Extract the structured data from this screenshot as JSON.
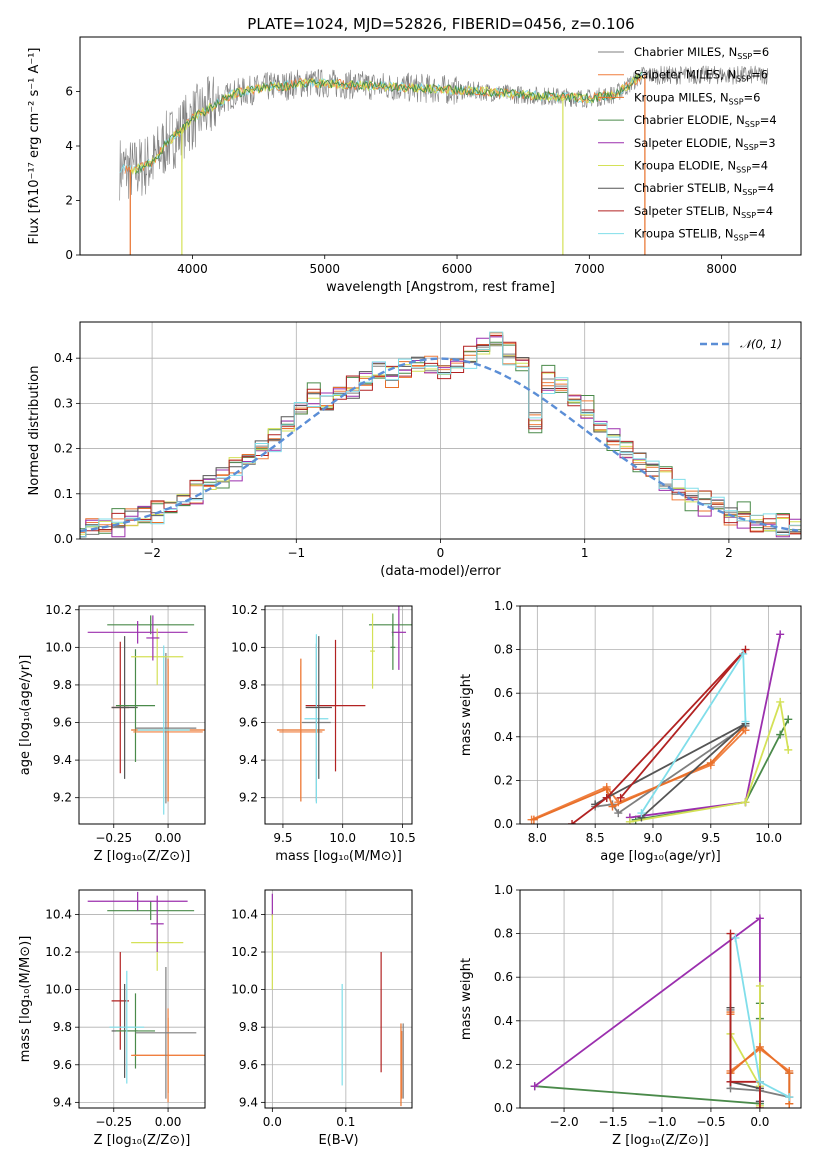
{
  "title": "PLATE=1024, MJD=52826, FIBERID=0456, z=0.106",
  "colors": {
    "series": [
      "#7f7f7f",
      "#f07f3f",
      "#e8702a",
      "#4a8a4a",
      "#9b2fae",
      "#d4e157",
      "#555555",
      "#b22222",
      "#80deea"
    ],
    "gaussian": "#5b8ed6",
    "grid": "#b0b0b0"
  },
  "chart_data": [
    {
      "id": "spectrum",
      "type": "line",
      "xlabel": "wavelength [Angstrom, rest frame]",
      "ylabel": "Flux [fλ10⁻¹⁷ erg cm⁻² s⁻¹ A⁻¹]",
      "xlim": [
        3150,
        8600
      ],
      "ylim": [
        0,
        8
      ],
      "xticks": [
        4000,
        5000,
        6000,
        7000,
        8000
      ],
      "yticks": [
        0,
        2,
        4,
        6
      ],
      "grid": false,
      "legend_position": "right",
      "continuum": {
        "x": [
          3450,
          3550,
          3700,
          3800,
          3900,
          4000,
          4100,
          4200,
          4300,
          4400,
          4500,
          4600,
          4700,
          4800,
          4900,
          5000,
          5200,
          5400,
          5600,
          5800,
          6000,
          6200,
          6400,
          6600,
          6800,
          7000,
          7200,
          7400
        ],
        "y": [
          3.2,
          3.1,
          3.4,
          4.1,
          4.5,
          5.0,
          5.3,
          5.6,
          5.9,
          6.0,
          6.1,
          6.2,
          6.2,
          6.3,
          6.3,
          6.3,
          6.25,
          6.2,
          6.15,
          6.1,
          6.05,
          6.0,
          5.9,
          5.85,
          5.8,
          5.75,
          5.9,
          6.6
        ]
      },
      "series": [
        {
          "name": "Chabrier MILES, N$_{SSP}$=6",
          "label_main": "Chabrier MILES, N",
          "label_sub": "SSP",
          "label_tail": "=6"
        },
        {
          "name": "Salpeter MILES, N$_{SSP}$=6",
          "label_main": "Salpeter MILES, N",
          "label_sub": "SSP",
          "label_tail": "=6"
        },
        {
          "name": "Kroupa MILES, N$_{SSP}$=6",
          "label_main": "Kroupa MILES, N",
          "label_sub": "SSP",
          "label_tail": "=6"
        },
        {
          "name": "Chabrier ELODIE, N$_{SSP}$=4",
          "label_main": "Chabrier ELODIE, N",
          "label_sub": "SSP",
          "label_tail": "=4"
        },
        {
          "name": "Salpeter ELODIE, N$_{SSP}$=3",
          "label_main": "Salpeter ELODIE, N",
          "label_sub": "SSP",
          "label_tail": "=3"
        },
        {
          "name": "Kroupa ELODIE, N$_{SSP}$=4",
          "label_main": "Kroupa ELODIE, N",
          "label_sub": "SSP",
          "label_tail": "=4"
        },
        {
          "name": "Chabrier STELIB, N$_{SSP}$=4",
          "label_main": "Chabrier STELIB, N",
          "label_sub": "SSP",
          "label_tail": "=4"
        },
        {
          "name": "Salpeter STELIB, N$_{SSP}$=4",
          "label_main": "Salpeter STELIB, N",
          "label_sub": "SSP",
          "label_tail": "=4"
        },
        {
          "name": "Kroupa STELIB, N$_{SSP}$=4",
          "label_main": "Kroupa STELIB, N",
          "label_sub": "SSP",
          "label_tail": "=4"
        }
      ]
    },
    {
      "id": "residuals",
      "type": "line",
      "xlabel": "(data-model)/error",
      "ylabel": "Normed distribution",
      "xlim": [
        -2.5,
        2.5
      ],
      "ylim": [
        0,
        0.48
      ],
      "xticks": [
        -2,
        -1,
        0,
        1,
        2
      ],
      "xticklabels": [
        "−2",
        "−1",
        "0",
        "1",
        "2"
      ],
      "yticks": [
        0.0,
        0.1,
        0.2,
        0.3,
        0.4
      ],
      "yticklabels": [
        "0.0",
        "0.1",
        "0.2",
        "0.3",
        "0.4"
      ],
      "grid": true,
      "legend_position": "top-right",
      "legend": "𝒩(0, 1)",
      "hist_base": [
        0.02,
        0.025,
        0.03,
        0.035,
        0.045,
        0.05,
        0.06,
        0.075,
        0.09,
        0.105,
        0.12,
        0.14,
        0.16,
        0.18,
        0.2,
        0.22,
        0.25,
        0.29,
        0.31,
        0.3,
        0.32,
        0.33,
        0.35,
        0.37,
        0.36,
        0.38,
        0.39,
        0.38,
        0.37,
        0.39,
        0.4,
        0.42,
        0.44,
        0.41,
        0.39,
        0.26,
        0.35,
        0.34,
        0.31,
        0.28,
        0.25,
        0.22,
        0.19,
        0.17,
        0.16,
        0.13,
        0.11,
        0.09,
        0.08,
        0.07,
        0.05,
        0.05,
        0.04,
        0.035,
        0.03,
        0.025,
        0.02
      ],
      "hist_offsets": [
        0.0,
        0.012,
        -0.01,
        0.02,
        -0.015,
        0.008,
        -0.006,
        0.015,
        -0.012
      ]
    },
    {
      "id": "age_vs_Z",
      "type": "scatter",
      "xlabel": "Z [log₁₀(Z/Z⊙)]",
      "ylabel": "age  [log₁₀(age/yr)]",
      "xlim": [
        -0.41,
        0.17
      ],
      "ylim": [
        9.06,
        10.22
      ],
      "xticks": [
        -0.25,
        0.0
      ],
      "xticklabels": [
        "−0.25",
        "0.00"
      ],
      "yticks": [
        9.2,
        9.4,
        9.6,
        9.8,
        10.0,
        10.2
      ],
      "yticklabels": [
        "9.2",
        "9.4",
        "9.6",
        "9.8",
        "10.0",
        "10.2"
      ],
      "grid": true,
      "errorbars": [
        {
          "x": -0.22,
          "xerr": 0.04,
          "y": 9.68,
          "yerr": 0.35,
          "c": 7
        },
        {
          "x": -0.2,
          "xerr": 0.06,
          "y": 9.68,
          "yerr": 0.38,
          "c": 6
        },
        {
          "x": -0.15,
          "xerr": 0.09,
          "y": 9.69,
          "yerr": 0.3,
          "c": 3
        },
        {
          "x": 0.0,
          "xerr": 0.17,
          "y": 9.56,
          "yerr": 0.38,
          "c": 2
        },
        {
          "x": 0.0,
          "xerr": 0.16,
          "y": 9.55,
          "yerr": 0.35,
          "c": 1
        },
        {
          "x": -0.01,
          "xerr": 0.14,
          "y": 9.57,
          "yerr": 0.4,
          "c": 0
        },
        {
          "x": -0.02,
          "xerr": 0.12,
          "y": 9.56,
          "yerr": 0.45,
          "c": 8
        },
        {
          "x": -0.08,
          "xerr": 0.2,
          "y": 10.12,
          "yerr": 0.05,
          "c": 3
        },
        {
          "x": -0.14,
          "xerr": 0.23,
          "y": 10.08,
          "yerr": 0.06,
          "c": 4
        },
        {
          "x": -0.05,
          "xerr": 0.12,
          "y": 9.95,
          "yerr": 0.15,
          "c": 5
        },
        {
          "x": -0.07,
          "xerr": 0.03,
          "y": 10.05,
          "yerr": 0.12,
          "c": 4
        }
      ]
    },
    {
      "id": "age_vs_mass",
      "type": "scatter",
      "xlabel": "mass [log₁₀(M/M⊙)]",
      "ylabel": "",
      "xlim": [
        9.35,
        10.58
      ],
      "ylim": [
        9.06,
        10.22
      ],
      "xticks": [
        9.5,
        10.0,
        10.5
      ],
      "xticklabels": [
        "9.5",
        "10.0",
        "10.5"
      ],
      "yticks": [
        9.2,
        9.4,
        9.6,
        9.8,
        10.0,
        10.2
      ],
      "yticklabels": [
        "9.2",
        "9.4",
        "9.6",
        "9.8",
        "10.0",
        "10.2"
      ],
      "grid": true,
      "errorbars": [
        {
          "x": 9.94,
          "xerr": 0.25,
          "y": 9.69,
          "yerr": 0.35,
          "c": 7
        },
        {
          "x": 9.65,
          "xerr": 0.2,
          "y": 9.56,
          "yerr": 0.38,
          "c": 2
        },
        {
          "x": 9.65,
          "xerr": 0.18,
          "y": 9.55,
          "yerr": 0.35,
          "c": 1
        },
        {
          "x": 9.78,
          "xerr": 0.12,
          "y": 9.6,
          "yerr": 0.42,
          "c": 0
        },
        {
          "x": 9.78,
          "xerr": 0.1,
          "y": 9.62,
          "yerr": 0.45,
          "c": 8
        },
        {
          "x": 9.8,
          "xerr": 0.11,
          "y": 9.68,
          "yerr": 0.38,
          "c": 6
        },
        {
          "x": 10.42,
          "xerr": 0.2,
          "y": 10.12,
          "yerr": 0.06,
          "c": 3
        },
        {
          "x": 10.47,
          "xerr": 0.06,
          "y": 10.08,
          "yerr": 0.2,
          "c": 4
        },
        {
          "x": 10.25,
          "xerr": 0.02,
          "y": 9.98,
          "yerr": 0.2,
          "c": 5
        },
        {
          "x": 10.42,
          "xerr": 0.02,
          "y": 10.0,
          "yerr": 0.12,
          "c": 3
        }
      ]
    },
    {
      "id": "massweight_vs_age",
      "type": "line",
      "xlabel": "age  [log₁₀(age/yr)]",
      "ylabel": "mass weight",
      "xlim": [
        7.85,
        10.28
      ],
      "ylim": [
        0,
        1.0
      ],
      "xticks": [
        8.0,
        8.5,
        9.0,
        9.5,
        10.0
      ],
      "xticklabels": [
        "8.0",
        "8.5",
        "9.0",
        "9.5",
        "10.0"
      ],
      "yticks": [
        0.0,
        0.2,
        0.4,
        0.6,
        0.8,
        1.0
      ],
      "yticklabels": [
        "0.0",
        "0.2",
        "0.4",
        "0.6",
        "0.8",
        "1.0"
      ],
      "grid": true,
      "series": [
        {
          "c": 0,
          "x": [
            8.5,
            8.65,
            8.7,
            9.8
          ],
          "y": [
            0.08,
            0.09,
            0.05,
            0.45
          ]
        },
        {
          "c": 1,
          "x": [
            7.95,
            8.6,
            8.7,
            9.5,
            9.8
          ],
          "y": [
            0.02,
            0.17,
            0.1,
            0.27,
            0.43
          ]
        },
        {
          "c": 2,
          "x": [
            7.97,
            8.6,
            8.65,
            9.5,
            9.78
          ],
          "y": [
            0.02,
            0.16,
            0.08,
            0.28,
            0.44
          ]
        },
        {
          "c": 3,
          "x": [
            8.85,
            9.8,
            10.1,
            10.17
          ],
          "y": [
            0.02,
            0.1,
            0.41,
            0.48
          ]
        },
        {
          "c": 4,
          "x": [
            8.8,
            9.8,
            10.1
          ],
          "y": [
            0.03,
            0.1,
            0.87
          ]
        },
        {
          "c": 5,
          "x": [
            8.8,
            9.8,
            10.1,
            10.17
          ],
          "y": [
            0.01,
            0.1,
            0.56,
            0.34
          ]
        },
        {
          "c": 6,
          "x": [
            8.9,
            9.8,
            8.6,
            8.5
          ],
          "y": [
            0.03,
            0.46,
            0.12,
            0.09
          ]
        },
        {
          "c": 7,
          "x": [
            8.3,
            8.6,
            9.8,
            8.72
          ],
          "y": [
            0.0,
            0.12,
            0.8,
            0.12
          ]
        },
        {
          "c": 8,
          "x": [
            8.9,
            9.78,
            9.8
          ],
          "y": [
            0.05,
            0.78,
            0.47
          ]
        }
      ]
    },
    {
      "id": "mass_vs_Z",
      "type": "scatter",
      "xlabel": "Z [log₁₀(Z/Z⊙)]",
      "ylabel": "mass [log₁₀(M/M⊙)]",
      "xlim": [
        -0.41,
        0.17
      ],
      "ylim": [
        9.37,
        10.53
      ],
      "xticks": [
        -0.25,
        0.0
      ],
      "xticklabels": [
        "−0.25",
        "0.00"
      ],
      "yticks": [
        9.4,
        9.6,
        9.8,
        10.0,
        10.2,
        10.4
      ],
      "yticklabels": [
        "9.4",
        "9.6",
        "9.8",
        "10.0",
        "10.2",
        "10.4"
      ],
      "grid": true,
      "errorbars": [
        {
          "x": -0.22,
          "xerr": 0.04,
          "y": 9.94,
          "yerr": 0.26,
          "c": 7
        },
        {
          "x": -0.2,
          "xerr": 0.06,
          "y": 9.78,
          "yerr": 0.25,
          "c": 6
        },
        {
          "x": -0.15,
          "xerr": 0.09,
          "y": 9.78,
          "yerr": 0.2,
          "c": 3
        },
        {
          "x": -0.19,
          "xerr": 0.08,
          "y": 9.8,
          "yerr": 0.3,
          "c": 8
        },
        {
          "x": 0.0,
          "xerr": 0.16,
          "y": 9.65,
          "yerr": 0.2,
          "c": 2
        },
        {
          "x": 0.0,
          "xerr": 0.17,
          "y": 9.65,
          "yerr": 0.25,
          "c": 1
        },
        {
          "x": -0.01,
          "xerr": 0.14,
          "y": 9.77,
          "yerr": 0.35,
          "c": 0
        },
        {
          "x": -0.08,
          "xerr": 0.2,
          "y": 10.42,
          "yerr": 0.05,
          "c": 3
        },
        {
          "x": -0.14,
          "xerr": 0.23,
          "y": 10.47,
          "yerr": 0.05,
          "c": 4
        },
        {
          "x": -0.05,
          "xerr": 0.12,
          "y": 10.25,
          "yerr": 0.15,
          "c": 5
        },
        {
          "x": -0.05,
          "xerr": 0.03,
          "y": 10.35,
          "yerr": 0.15,
          "c": 4
        }
      ]
    },
    {
      "id": "mass_vs_EBV",
      "type": "scatter",
      "xlabel": "E(B-V)",
      "ylabel": "",
      "xlim": [
        -0.01,
        0.19
      ],
      "ylim": [
        9.37,
        10.53
      ],
      "xticks": [
        0.0,
        0.1
      ],
      "xticklabels": [
        "0.0",
        "0.1"
      ],
      "yticks": [
        9.4,
        9.6,
        9.8,
        10.0,
        10.2,
        10.4
      ],
      "yticklabels": [
        "9.4",
        "9.6",
        "9.8",
        "10.0",
        "10.2",
        "10.4"
      ],
      "grid": true,
      "errorbars": [
        {
          "x": 0.0,
          "xerr": 0.0,
          "y": 10.45,
          "yerr": 0.06,
          "c": 4
        },
        {
          "x": 0.0,
          "xerr": 0.0,
          "y": 10.2,
          "yerr": 0.2,
          "c": 5
        },
        {
          "x": 0.095,
          "xerr": 0.0,
          "y": 9.76,
          "yerr": 0.27,
          "c": 8
        },
        {
          "x": 0.148,
          "xerr": 0.0,
          "y": 9.88,
          "yerr": 0.32,
          "c": 7
        },
        {
          "x": 0.175,
          "xerr": 0.0,
          "y": 9.6,
          "yerr": 0.22,
          "c": 2
        },
        {
          "x": 0.178,
          "xerr": 0.0,
          "y": 9.62,
          "yerr": 0.2,
          "c": 0
        },
        {
          "x": 0.176,
          "xerr": 0.0,
          "y": 9.6,
          "yerr": 0.18,
          "c": 1
        }
      ]
    },
    {
      "id": "massweight_vs_Z",
      "type": "line",
      "xlabel": "Z [log₁₀(Z/Z⊙)]",
      "ylabel": "mass weight",
      "xlim": [
        -2.45,
        0.42
      ],
      "ylim": [
        0,
        1.0
      ],
      "xticks": [
        -2.0,
        -1.5,
        -1.0,
        -0.5,
        0.0
      ],
      "xticklabels": [
        "−2.0",
        "−1.5",
        "−1.0",
        "−0.5",
        "0.0"
      ],
      "yticks": [
        0.0,
        0.2,
        0.4,
        0.6,
        0.8,
        1.0
      ],
      "yticklabels": [
        "0.0",
        "0.2",
        "0.4",
        "0.6",
        "0.8",
        "1.0"
      ],
      "grid": true,
      "series": [
        {
          "c": 3,
          "x": [
            -2.3,
            0.0,
            0.0,
            0.0
          ],
          "y": [
            0.1,
            0.02,
            0.41,
            0.48
          ]
        },
        {
          "c": 4,
          "x": [
            -2.3,
            0.0,
            0.0
          ],
          "y": [
            0.1,
            0.87,
            0.03
          ]
        },
        {
          "c": 5,
          "x": [
            -0.3,
            0.0,
            0.0,
            0.0
          ],
          "y": [
            0.34,
            0.1,
            0.56,
            0.01
          ]
        },
        {
          "c": 0,
          "x": [
            -0.3,
            -0.3,
            0.0,
            0.3,
            0.3
          ],
          "y": [
            0.45,
            0.09,
            0.08,
            0.05,
            0.16
          ]
        },
        {
          "c": 1,
          "x": [
            -0.3,
            -0.3,
            0.0,
            0.3,
            0.3
          ],
          "y": [
            0.43,
            0.17,
            0.27,
            0.17,
            0.02
          ]
        },
        {
          "c": 2,
          "x": [
            -0.3,
            -0.3,
            0.0,
            0.3,
            0.3
          ],
          "y": [
            0.44,
            0.16,
            0.28,
            0.16,
            0.02
          ]
        },
        {
          "c": 6,
          "x": [
            -0.3,
            -0.3,
            0.0,
            0.0
          ],
          "y": [
            0.46,
            0.12,
            0.09,
            0.03
          ]
        },
        {
          "c": 7,
          "x": [
            -0.3,
            -0.3,
            0.0,
            0.0
          ],
          "y": [
            0.8,
            0.12,
            0.12,
            0.0
          ]
        },
        {
          "c": 8,
          "x": [
            -0.25,
            0.0,
            0.3
          ],
          "y": [
            0.78,
            0.12,
            0.05
          ]
        }
      ]
    }
  ]
}
